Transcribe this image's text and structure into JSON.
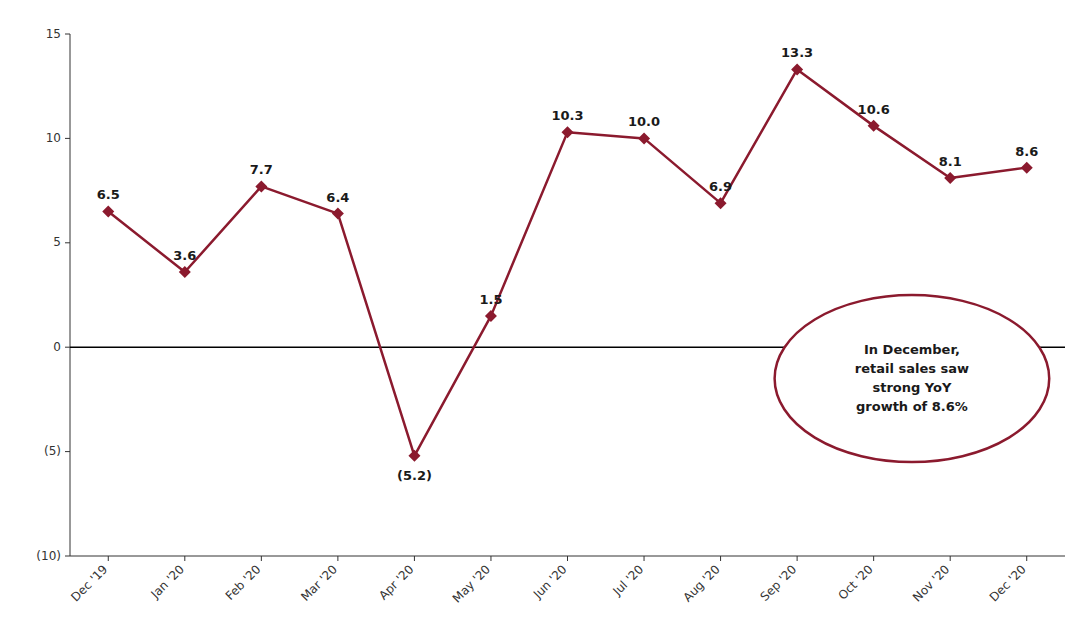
{
  "chart_data": {
    "type": "line",
    "categories": [
      "Dec '19",
      "Jan '20",
      "Feb '20",
      "Mar '20",
      "Apr '20",
      "May '20",
      "Jun '20",
      "Jul '20",
      "Aug '20",
      "Sep '20",
      "Oct '20",
      "Nov '20",
      "Dec '20"
    ],
    "values": [
      6.5,
      3.6,
      7.7,
      6.4,
      -5.2,
      1.5,
      10.3,
      10.0,
      6.9,
      13.3,
      10.6,
      8.1,
      8.6
    ],
    "value_labels": [
      "6.5",
      "3.6",
      "7.7",
      "6.4",
      "(5.2)",
      "1.5",
      "10.3",
      "10.0",
      "6.9",
      "13.3",
      "10.6",
      "8.1",
      "8.6"
    ],
    "data_labels": true,
    "color": "#8B1A2E",
    "marker": "diamond",
    "line_style": "solid",
    "ylim": [
      -10,
      15
    ],
    "yticks": [
      {
        "value": -10,
        "label": "(10)"
      },
      {
        "value": -5,
        "label": "(5)"
      },
      0,
      5,
      10,
      15
    ],
    "grid": false,
    "annotation": "In December,\nretail sales saw\nstrong YoY\ngrowth of 8.6%"
  }
}
